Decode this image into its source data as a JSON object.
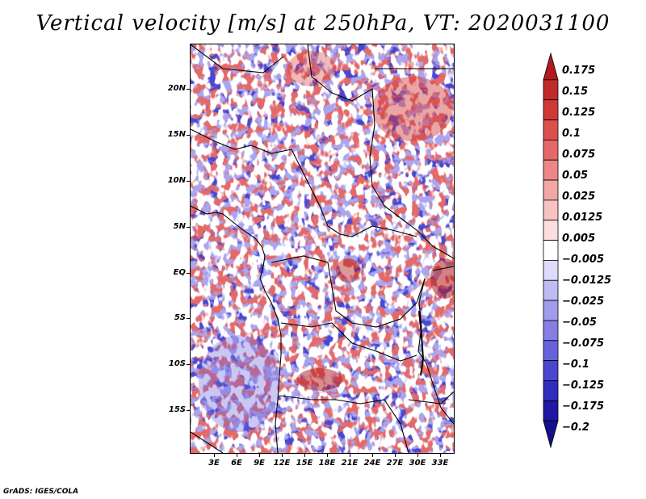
{
  "title": "Vertical velocity [m/s] at 250hPa, VT: 2020031100",
  "footer": "GrADS: IGES/COLA",
  "map": {
    "region": "Central Africa",
    "lat_labels": [
      "20N",
      "15N",
      "10N",
      "5N",
      "EQ",
      "5S",
      "10S",
      "15S"
    ],
    "lon_labels": [
      "3E",
      "6E",
      "9E",
      "12E",
      "15E",
      "18E",
      "21E",
      "24E",
      "27E",
      "30E",
      "33E"
    ],
    "variable": "vertical velocity",
    "level": "250hPa",
    "valid_time": "2020031100"
  },
  "colorbar": {
    "labels": [
      "0.175",
      "0.15",
      "0.125",
      "0.1",
      "0.075",
      "0.05",
      "0.025",
      "0.0125",
      "0.005",
      "−0.005",
      "−0.0125",
      "−0.025",
      "−0.05",
      "−0.075",
      "−0.1",
      "−0.125",
      "−0.175",
      "−0.2"
    ],
    "colors": [
      "#b41a1a",
      "#c22a2a",
      "#d03838",
      "#dc4f4f",
      "#e56868",
      "#ee8686",
      "#f4a5a5",
      "#f8c2c2",
      "#fcdede",
      "#ffffff",
      "#dedcfa",
      "#bebcf3",
      "#a09ced",
      "#847ee5",
      "#6762dc",
      "#4a46cf",
      "#302cbc",
      "#2018a4",
      "#170f8c"
    ]
  }
}
